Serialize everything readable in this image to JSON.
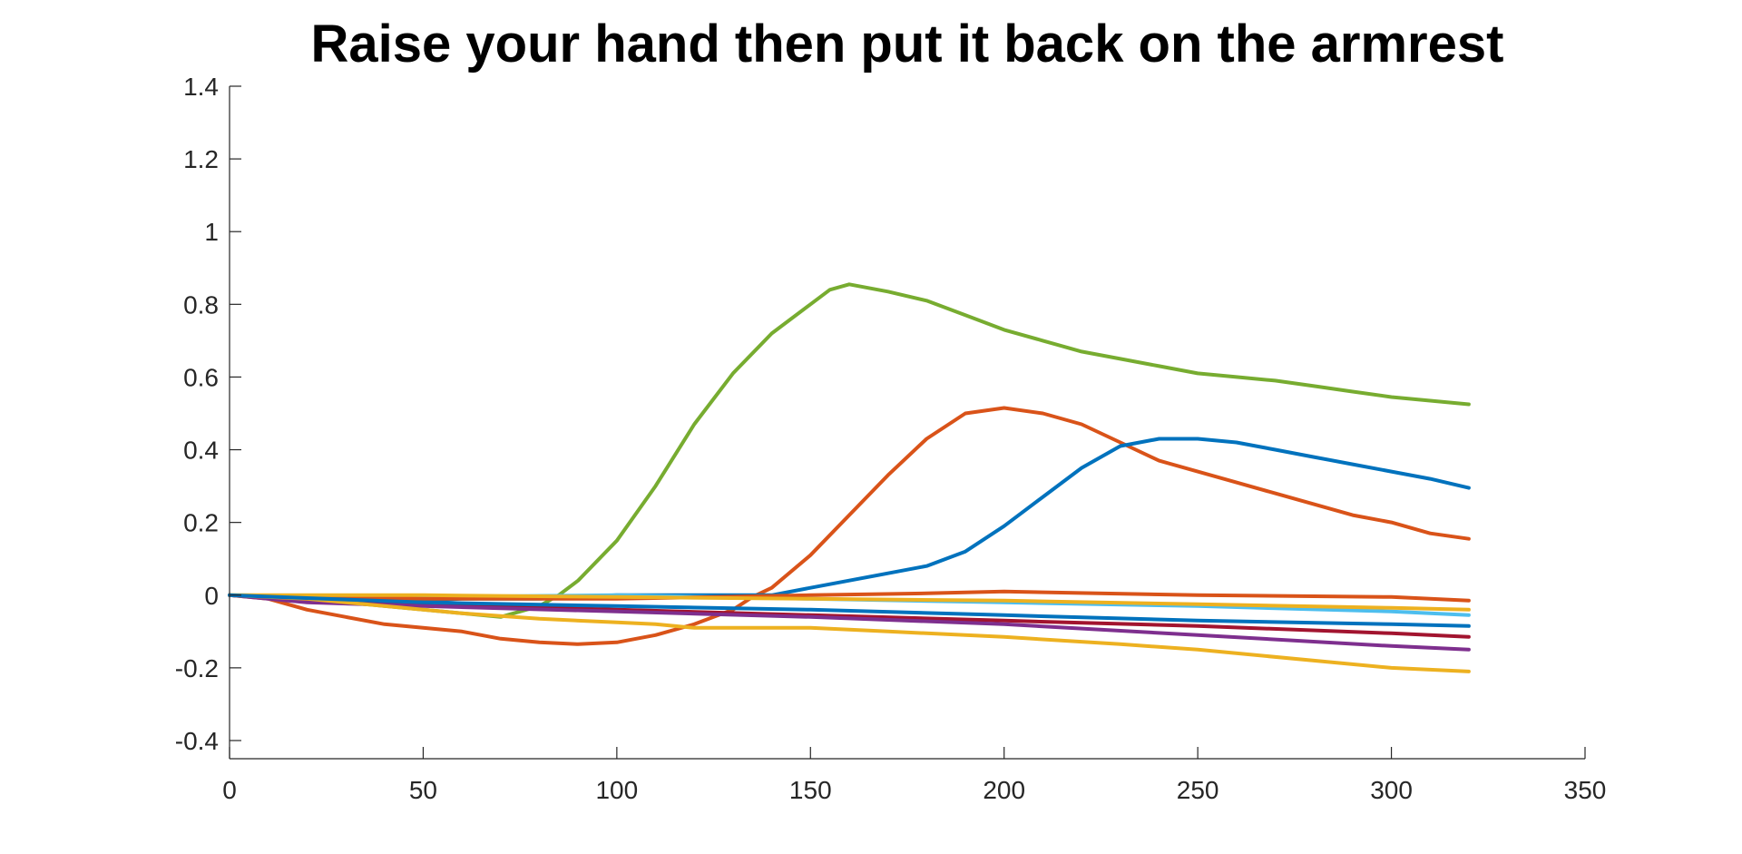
{
  "chart_data": {
    "type": "line",
    "title": "Raise your hand then put it back on the armrest",
    "xlabel": "",
    "ylabel": "",
    "xlim": [
      0,
      350
    ],
    "ylim": [
      -0.45,
      1.4
    ],
    "xticks": [
      0,
      50,
      100,
      150,
      200,
      250,
      300,
      350
    ],
    "yticks": [
      -0.4,
      -0.2,
      0,
      0.2,
      0.4,
      0.6,
      0.8,
      1,
      1.2,
      1.4
    ],
    "xtick_labels": [
      "0",
      "50",
      "100",
      "150",
      "200",
      "250",
      "300",
      "350"
    ],
    "ytick_labels": [
      "-0.4",
      "-0.2",
      "0",
      "0.2",
      "0.4",
      "0.6",
      "0.8",
      "1",
      "1.2",
      "1.4"
    ],
    "grid": false,
    "legend": "none",
    "series": [
      {
        "color": "#77AC30",
        "x": [
          0,
          20,
          40,
          60,
          70,
          80,
          85,
          90,
          100,
          110,
          120,
          130,
          140,
          150,
          155,
          160,
          165,
          170,
          180,
          190,
          200,
          210,
          220,
          230,
          240,
          250,
          260,
          270,
          280,
          290,
          300,
          310,
          320
        ],
        "y": [
          0,
          -0.01,
          -0.03,
          -0.05,
          -0.06,
          -0.03,
          0,
          0.04,
          0.15,
          0.3,
          0.47,
          0.61,
          0.72,
          0.8,
          0.84,
          0.855,
          0.845,
          0.835,
          0.81,
          0.77,
          0.73,
          0.7,
          0.67,
          0.65,
          0.63,
          0.61,
          0.6,
          0.59,
          0.575,
          0.56,
          0.545,
          0.535,
          0.525
        ]
      },
      {
        "color": "#D95319",
        "x": [
          0,
          10,
          20,
          30,
          40,
          50,
          60,
          70,
          80,
          90,
          100,
          110,
          120,
          130,
          135,
          140,
          150,
          160,
          170,
          180,
          190,
          200,
          210,
          220,
          230,
          240,
          250,
          260,
          270,
          280,
          290,
          300,
          310,
          320
        ],
        "y": [
          0,
          -0.01,
          -0.04,
          -0.06,
          -0.08,
          -0.09,
          -0.1,
          -0.12,
          -0.13,
          -0.135,
          -0.13,
          -0.11,
          -0.08,
          -0.04,
          -0.005,
          0.02,
          0.11,
          0.22,
          0.33,
          0.43,
          0.5,
          0.515,
          0.5,
          0.47,
          0.42,
          0.37,
          0.34,
          0.31,
          0.28,
          0.25,
          0.22,
          0.2,
          0.17,
          0.155
        ]
      },
      {
        "color": "#0072BD",
        "x": [
          0,
          20,
          40,
          60,
          80,
          100,
          120,
          140,
          150,
          160,
          170,
          180,
          190,
          200,
          210,
          220,
          230,
          240,
          250,
          260,
          270,
          280,
          290,
          300,
          310,
          320
        ],
        "y": [
          0,
          -0.01,
          -0.02,
          -0.01,
          -0.01,
          0,
          0,
          0,
          0.02,
          0.04,
          0.06,
          0.08,
          0.12,
          0.19,
          0.27,
          0.35,
          0.41,
          0.43,
          0.43,
          0.42,
          0.4,
          0.38,
          0.36,
          0.34,
          0.32,
          0.295
        ]
      },
      {
        "color": "#A2142F",
        "x": [
          0,
          20,
          50,
          100,
          150,
          200,
          250,
          300,
          320
        ],
        "y": [
          0,
          -0.015,
          -0.025,
          -0.04,
          -0.055,
          -0.07,
          -0.085,
          -0.105,
          -0.115
        ]
      },
      {
        "color": "#7E2F8E",
        "x": [
          0,
          20,
          50,
          100,
          150,
          200,
          250,
          300,
          320
        ],
        "y": [
          0,
          -0.02,
          -0.03,
          -0.045,
          -0.06,
          -0.08,
          -0.11,
          -0.14,
          -0.15
        ]
      },
      {
        "color": "#EDB120",
        "x": [
          0,
          20,
          40,
          60,
          80,
          100,
          110,
          120,
          150,
          170,
          200,
          230,
          250,
          280,
          300,
          320
        ],
        "y": [
          0,
          -0.01,
          -0.03,
          -0.05,
          -0.065,
          -0.075,
          -0.08,
          -0.09,
          -0.09,
          -0.1,
          -0.115,
          -0.135,
          -0.15,
          -0.18,
          -0.2,
          -0.21
        ]
      },
      {
        "color": "#4DBEEE",
        "x": [
          0,
          50,
          100,
          150,
          200,
          250,
          300,
          320
        ],
        "y": [
          0,
          -0.005,
          0,
          -0.01,
          -0.02,
          -0.03,
          -0.045,
          -0.055
        ]
      },
      {
        "color": "#D95319",
        "x": [
          0,
          50,
          100,
          150,
          180,
          200,
          250,
          300,
          320
        ],
        "y": [
          0,
          -0.01,
          -0.01,
          0,
          0.005,
          0.01,
          0,
          -0.005,
          -0.015
        ]
      },
      {
        "color": "#EDB120",
        "x": [
          0,
          50,
          100,
          150,
          200,
          250,
          300,
          320
        ],
        "y": [
          0,
          0,
          -0.005,
          -0.01,
          -0.015,
          -0.025,
          -0.035,
          -0.04
        ]
      },
      {
        "color": "#0072BD",
        "x": [
          0,
          50,
          100,
          150,
          200,
          250,
          300,
          320
        ],
        "y": [
          0,
          -0.02,
          -0.03,
          -0.04,
          -0.055,
          -0.07,
          -0.08,
          -0.085
        ]
      }
    ]
  }
}
